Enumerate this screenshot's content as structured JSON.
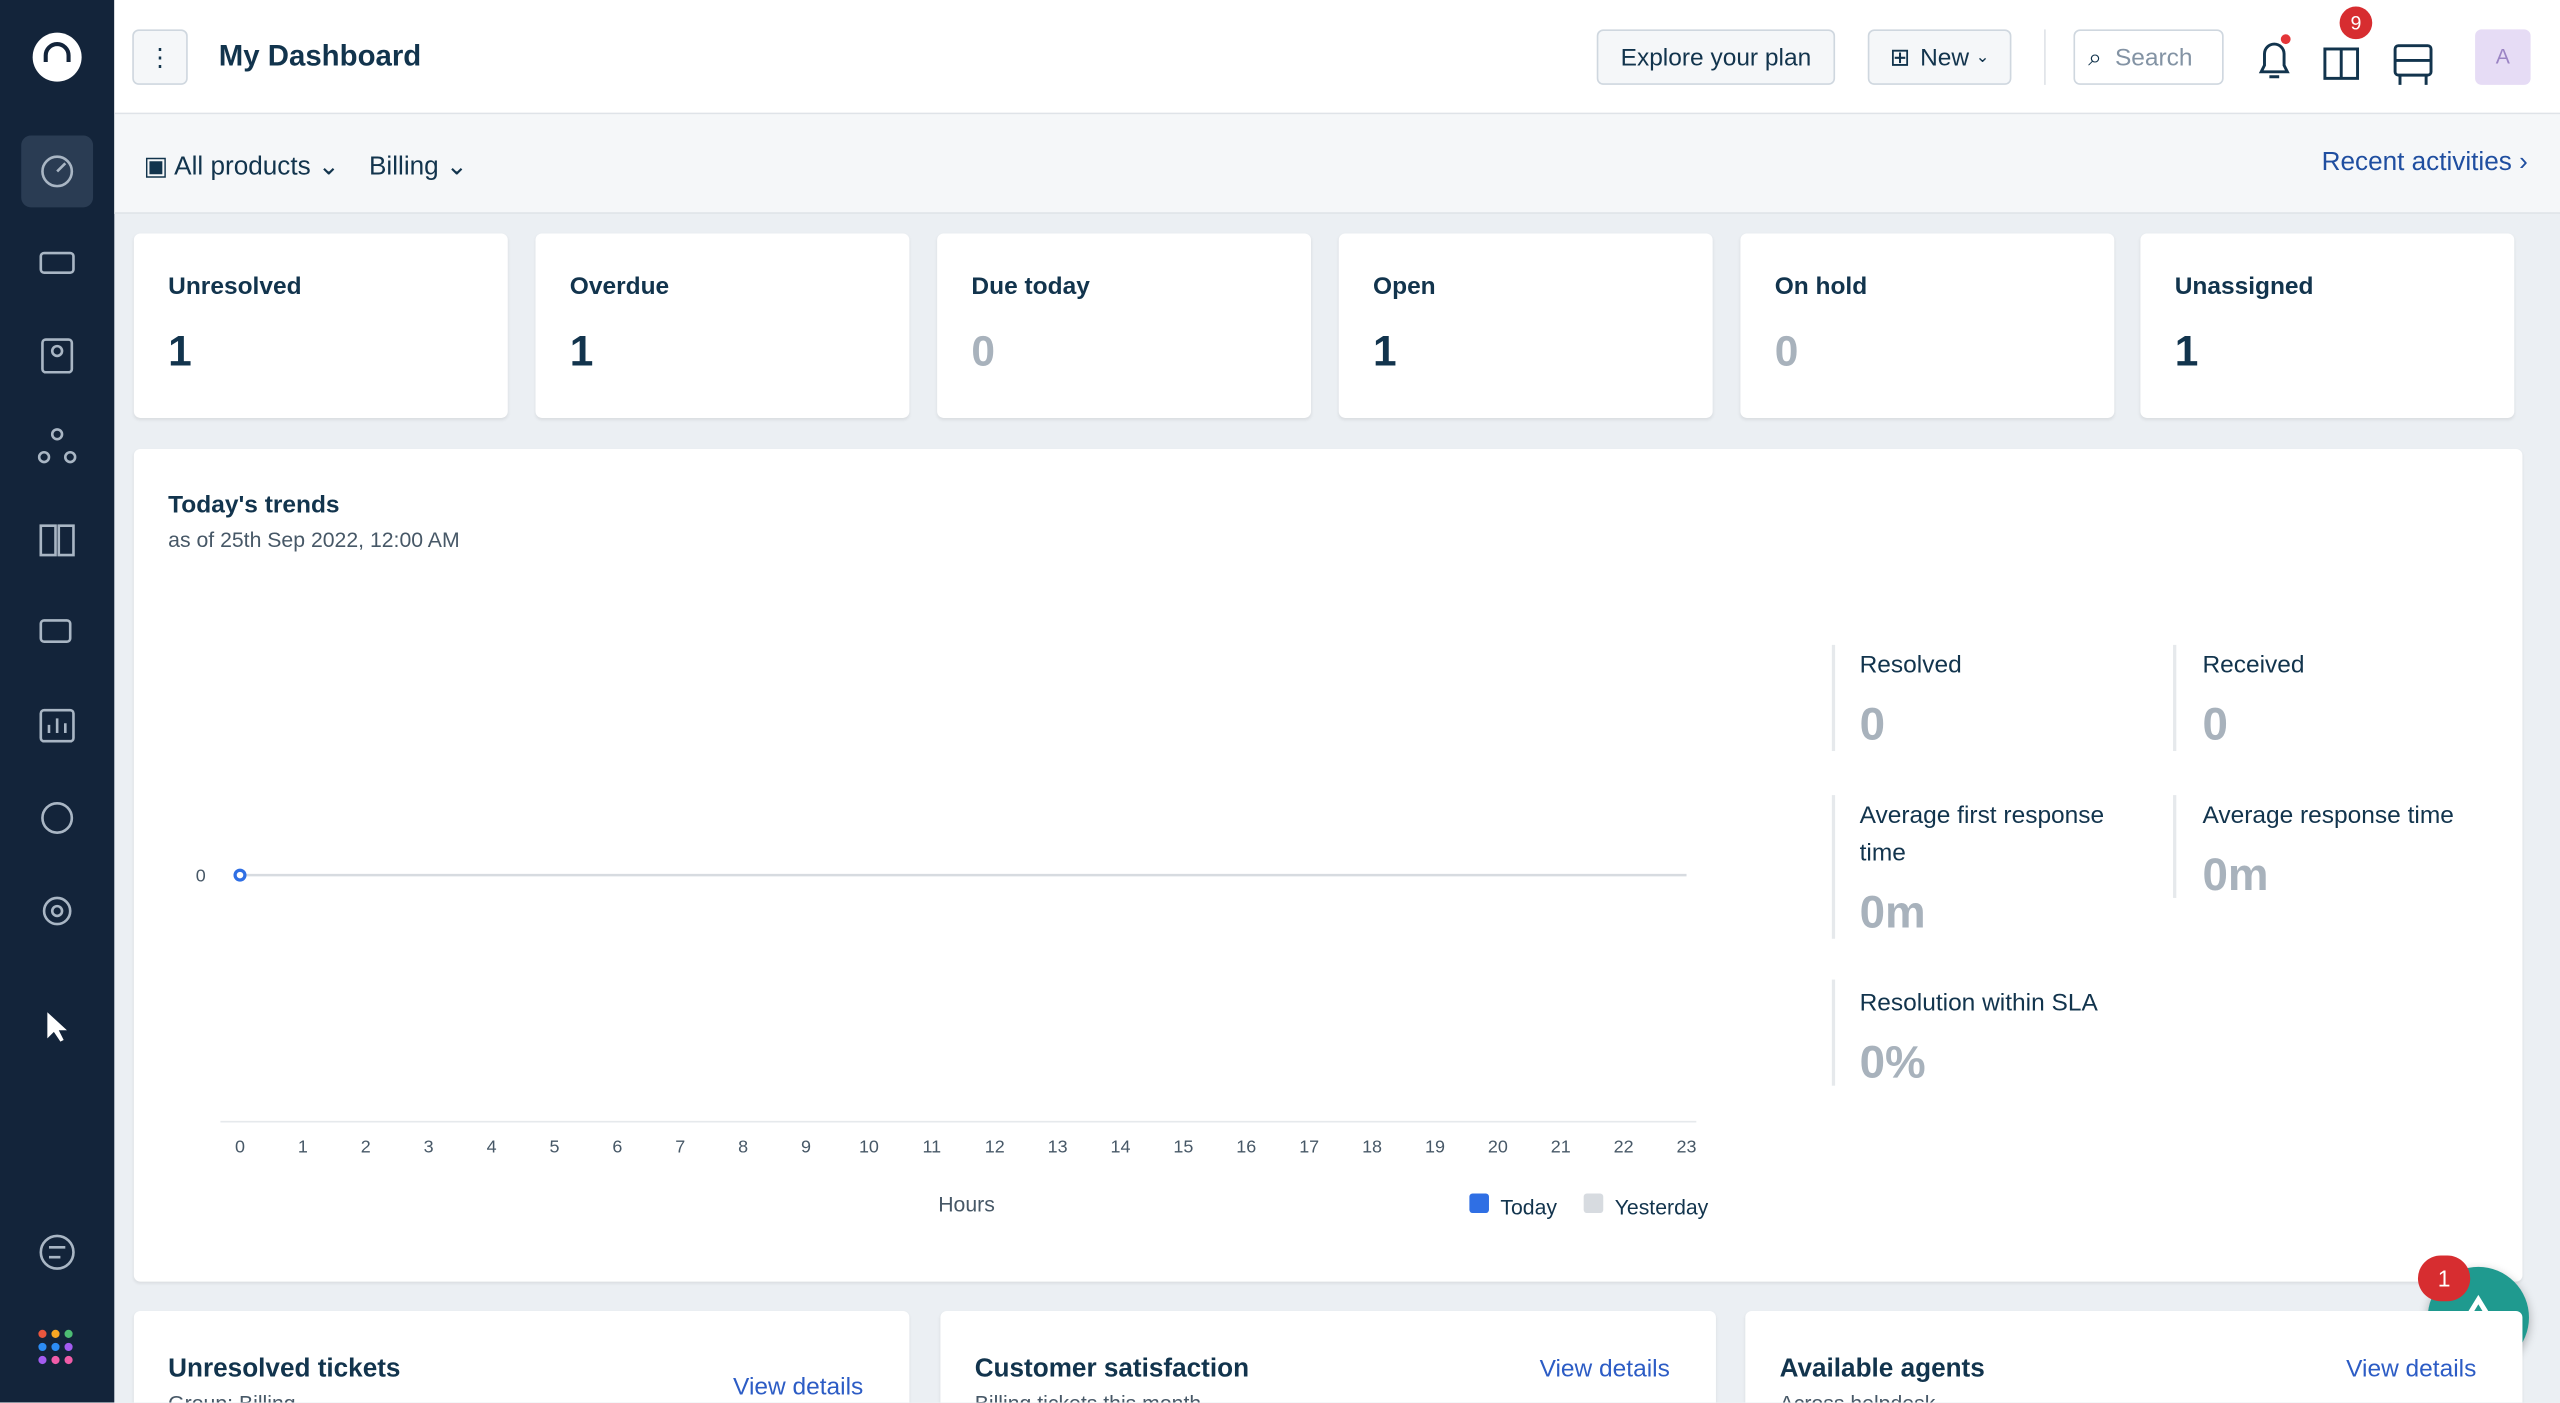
{
  "topbar": {
    "title": "My Dashboard",
    "explore": "Explore your plan",
    "new": "New",
    "search": "Search",
    "gift_badge": "9",
    "avatar": "A"
  },
  "filters": {
    "products": "All products",
    "group": "Billing",
    "recent": "Recent activities"
  },
  "cards": [
    {
      "label": "Unresolved",
      "value": "1"
    },
    {
      "label": "Overdue",
      "value": "1"
    },
    {
      "label": "Due today",
      "value": "0"
    },
    {
      "label": "Open",
      "value": "1"
    },
    {
      "label": "On hold",
      "value": "0"
    },
    {
      "label": "Unassigned",
      "value": "1"
    }
  ],
  "trends": {
    "title": "Today's trends",
    "subtitle": "as of 25th Sep 2022, 12:00 AM",
    "chart": {
      "type": "line",
      "x_label": "Hours",
      "x": [
        0,
        1,
        2,
        3,
        4,
        5,
        6,
        7,
        8,
        9,
        10,
        11,
        12,
        13,
        14,
        15,
        16,
        17,
        18,
        19,
        20,
        21,
        22,
        23
      ],
      "yticks": [
        0
      ],
      "series": [
        {
          "name": "Today",
          "color": "#2f6fe4",
          "values": [
            0,
            null,
            null,
            null,
            null,
            null,
            null,
            null,
            null,
            null,
            null,
            null,
            null,
            null,
            null,
            null,
            null,
            null,
            null,
            null,
            null,
            null,
            null,
            null
          ]
        },
        {
          "name": "Yesterday",
          "color": "#d7dbe0",
          "values": [
            0,
            0,
            0,
            0,
            0,
            0,
            0,
            0,
            0,
            0,
            0,
            0,
            0,
            0,
            0,
            0,
            0,
            0,
            0,
            0,
            0,
            0,
            0,
            0
          ]
        }
      ]
    },
    "stats": [
      {
        "label": "Resolved",
        "value": "0"
      },
      {
        "label": "Received",
        "value": "0"
      },
      {
        "label": "Average first response time",
        "value": "0m"
      },
      {
        "label": "Average response time",
        "value": "0m"
      },
      {
        "label": "Resolution within SLA",
        "value": "0%"
      }
    ]
  },
  "bottom": [
    {
      "title": "Unresolved tickets",
      "sub": "Group: Billing",
      "link": "View details"
    },
    {
      "title": "Customer satisfaction",
      "sub": "Billing tickets this month",
      "link": "View details"
    },
    {
      "title": "Available agents",
      "sub": "Across helpdesk",
      "link": "View details"
    }
  ],
  "fab_badge": "1"
}
